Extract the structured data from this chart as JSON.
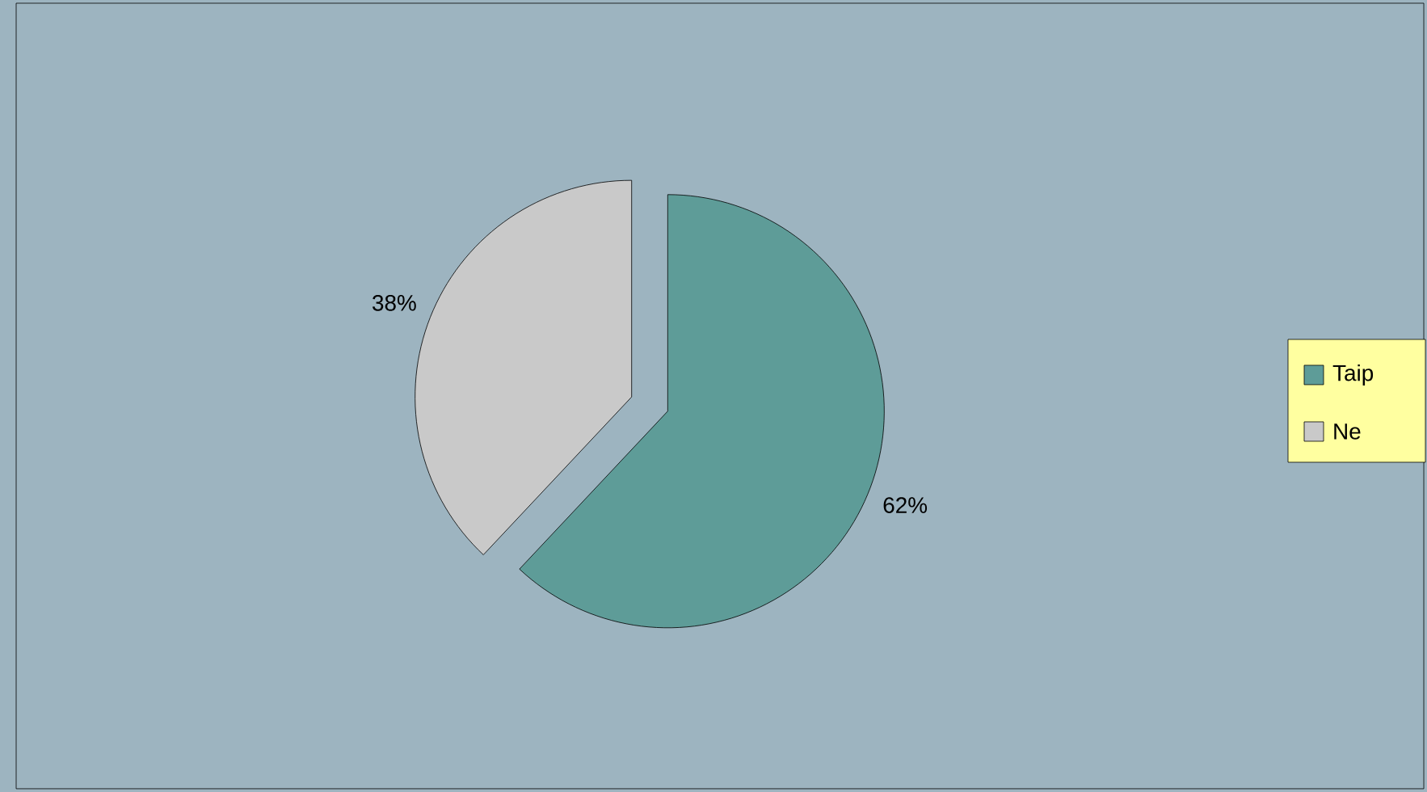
{
  "chart_data": {
    "type": "pie",
    "categories": [
      "Taip",
      "Ne"
    ],
    "values": [
      62,
      38
    ],
    "colors": [
      "#5e9c98",
      "#c9c9c9"
    ],
    "value_labels": [
      "62%",
      "38%"
    ],
    "legend": "right"
  }
}
